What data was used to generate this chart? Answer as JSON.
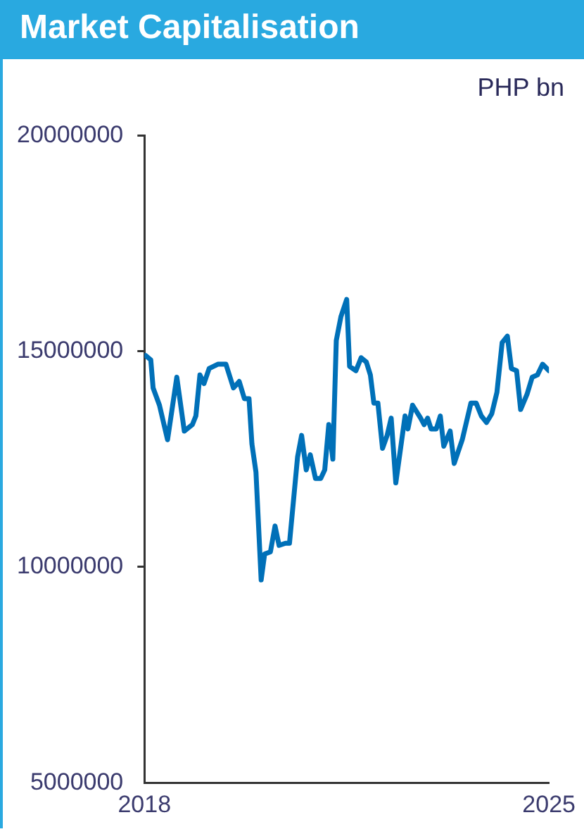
{
  "chart_data": {
    "type": "line",
    "title": "Market Capitalisation",
    "ylabel": "PHP bn",
    "x": [
      2018.02,
      2018.11,
      2018.15,
      2018.26,
      2018.4,
      2018.56,
      2018.69,
      2018.83,
      2018.89,
      2018.96,
      2019.03,
      2019.12,
      2019.27,
      2019.41,
      2019.54,
      2019.64,
      2019.73,
      2019.81,
      2019.86,
      2019.93,
      2020.02,
      2020.08,
      2020.18,
      2020.26,
      2020.33,
      2020.44,
      2020.51,
      2020.58,
      2020.65,
      2020.72,
      2020.8,
      2020.87,
      2020.96,
      2021.05,
      2021.12,
      2021.19,
      2021.26,
      2021.32,
      2021.4,
      2021.5,
      2021.55,
      2021.66,
      2021.75,
      2021.84,
      2021.91,
      2021.97,
      2022.04,
      2022.12,
      2022.2,
      2022.27,
      2022.35,
      2022.51,
      2022.56,
      2022.64,
      2022.78,
      2022.84,
      2022.9,
      2022.96,
      2023.05,
      2023.12,
      2023.18,
      2023.29,
      2023.36,
      2023.5,
      2023.65,
      2023.74,
      2023.83,
      2023.92,
      2024.01,
      2024.1,
      2024.19,
      2024.28,
      2024.35,
      2024.44,
      2024.51,
      2024.62,
      2024.71,
      2024.8,
      2024.89,
      2025.0
    ],
    "series": [
      {
        "color": "#0070b8",
        "values": [
          14900000,
          14800000,
          14150000,
          13750000,
          12950000,
          14400000,
          13150000,
          13300000,
          13500000,
          14450000,
          14250000,
          14600000,
          14700000,
          14700000,
          14150000,
          14300000,
          13900000,
          13900000,
          12850000,
          12200000,
          9700000,
          10300000,
          10350000,
          10950000,
          10500000,
          10550000,
          10550000,
          11550000,
          12550000,
          13050000,
          12250000,
          12600000,
          12050000,
          12050000,
          12250000,
          13300000,
          12500000,
          15250000,
          15800000,
          16200000,
          14650000,
          14550000,
          14850000,
          14750000,
          14450000,
          13800000,
          13800000,
          12750000,
          13050000,
          13450000,
          11950000,
          13500000,
          13200000,
          13750000,
          13450000,
          13300000,
          13450000,
          13200000,
          13200000,
          13500000,
          12800000,
          13150000,
          12400000,
          12950000,
          13800000,
          13800000,
          13500000,
          13350000,
          13550000,
          14050000,
          15200000,
          15350000,
          14600000,
          14550000,
          13650000,
          14000000,
          14400000,
          14450000,
          14700000,
          14550000
        ]
      }
    ],
    "xlim": [
      2018,
      2025
    ],
    "xticks": [
      2018,
      2025
    ],
    "ylim": [
      5000000,
      20000000
    ],
    "yticks": [
      5000000,
      10000000,
      15000000,
      20000000
    ],
    "grid": false,
    "legend": false,
    "marker": "none",
    "line_style": "solid"
  }
}
